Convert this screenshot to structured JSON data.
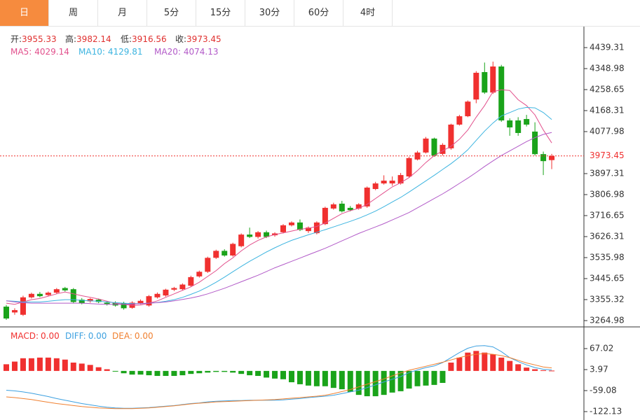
{
  "tabs": [
    "日",
    "周",
    "月",
    "5分",
    "15分",
    "30分",
    "60分",
    "4时"
  ],
  "chart_data": [
    {
      "type": "candlestick",
      "ohlc_labels": [
        "开:",
        "高:",
        "低:",
        "收:"
      ],
      "up_color": "#f0302f",
      "down_color": "#1aa31a",
      "candles": [
        [
          3325,
          3332,
          3268,
          3274
        ],
        [
          3300,
          3318,
          3290,
          3310
        ],
        [
          3290,
          3372,
          3285,
          3365
        ],
        [
          3365,
          3385,
          3360,
          3380
        ],
        [
          3380,
          3388,
          3365,
          3370
        ],
        [
          3375,
          3390,
          3370,
          3385
        ],
        [
          3385,
          3405,
          3380,
          3400
        ],
        [
          3405,
          3410,
          3390,
          3395
        ],
        [
          3400,
          3405,
          3340,
          3345
        ],
        [
          3355,
          3362,
          3335,
          3340
        ],
        [
          3348,
          3362,
          3342,
          3358
        ],
        [
          3355,
          3360,
          3340,
          3345
        ],
        [
          3342,
          3350,
          3330,
          3336
        ],
        [
          3342,
          3348,
          3325,
          3330
        ],
        [
          3340,
          3346,
          3312,
          3318
        ],
        [
          3320,
          3348,
          3316,
          3342
        ],
        [
          3340,
          3356,
          3335,
          3350
        ],
        [
          3330,
          3375,
          3325,
          3370
        ],
        [
          3365,
          3386,
          3360,
          3380
        ],
        [
          3373,
          3402,
          3368,
          3398
        ],
        [
          3398,
          3410,
          3392,
          3405
        ],
        [
          3400,
          3425,
          3396,
          3420
        ],
        [
          3415,
          3458,
          3410,
          3452
        ],
        [
          3455,
          3480,
          3450,
          3475
        ],
        [
          3475,
          3540,
          3470,
          3535
        ],
        [
          3535,
          3570,
          3530,
          3565
        ],
        [
          3565,
          3572,
          3540,
          3545
        ],
        [
          3545,
          3600,
          3540,
          3595
        ],
        [
          3585,
          3640,
          3580,
          3635
        ],
        [
          3635,
          3665,
          3620,
          3625
        ],
        [
          3625,
          3650,
          3618,
          3645
        ],
        [
          3645,
          3652,
          3620,
          3625
        ],
        [
          3632,
          3645,
          3626,
          3640
        ],
        [
          3645,
          3680,
          3640,
          3675
        ],
        [
          3675,
          3692,
          3670,
          3687
        ],
        [
          3687,
          3700,
          3650,
          3655
        ],
        [
          3650,
          3670,
          3642,
          3665
        ],
        [
          3641,
          3692,
          3636,
          3687
        ],
        [
          3680,
          3755,
          3676,
          3750
        ],
        [
          3747,
          3772,
          3742,
          3765
        ],
        [
          3768,
          3780,
          3730,
          3735
        ],
        [
          3750,
          3758,
          3735,
          3740
        ],
        [
          3747,
          3770,
          3742,
          3765
        ],
        [
          3756,
          3842,
          3750,
          3837
        ],
        [
          3831,
          3862,
          3826,
          3855
        ],
        [
          3855,
          3890,
          3850,
          3867
        ],
        [
          3855,
          3885,
          3845,
          3867
        ],
        [
          3855,
          3900,
          3850,
          3891
        ],
        [
          3885,
          3970,
          3880,
          3964
        ],
        [
          3958,
          3995,
          3954,
          3988
        ],
        [
          3988,
          4055,
          3984,
          4048
        ],
        [
          4048,
          4052,
          3970,
          3975
        ],
        [
          3982,
          4028,
          3975,
          4021
        ],
        [
          4006,
          4112,
          4000,
          4108
        ],
        [
          4108,
          4150,
          4104,
          4144
        ],
        [
          4144,
          4212,
          4140,
          4207
        ],
        [
          4216,
          4338,
          4200,
          4331
        ],
        [
          4334,
          4375,
          4240,
          4246
        ],
        [
          4246,
          4379,
          4240,
          4358
        ],
        [
          4358,
          4365,
          4120,
          4126
        ],
        [
          4126,
          4135,
          4060,
          4096
        ],
        [
          4126,
          4140,
          4060,
          4072
        ],
        [
          4132,
          4150,
          4100,
          4108
        ],
        [
          4078,
          4118,
          3975,
          3981
        ],
        [
          3981,
          3992,
          3891,
          3951
        ],
        [
          3955.33,
          3982.14,
          3916.56,
          3973.45
        ]
      ],
      "series": [
        {
          "name": "MA5:",
          "color": "#e2508c",
          "values": [
            3340,
            3335,
            3345,
            3355,
            3360,
            3370,
            3380,
            3388,
            3380,
            3372,
            3365,
            3358,
            3348,
            3340,
            3335,
            3330,
            3332,
            3340,
            3350,
            3365,
            3380,
            3395,
            3410,
            3430,
            3455,
            3480,
            3510,
            3535,
            3565,
            3590,
            3610,
            3625,
            3635,
            3642,
            3650,
            3658,
            3662,
            3670,
            3685,
            3705,
            3725,
            3738,
            3748,
            3765,
            3790,
            3815,
            3840,
            3858,
            3880,
            3910,
            3945,
            3975,
            3995,
            4015,
            4045,
            4085,
            4140,
            4190,
            4250,
            4258,
            4255,
            4215,
            4190,
            4150,
            4085,
            4029.14
          ]
        },
        {
          "name": "MA10:",
          "color": "#3cb4e0",
          "values": [
            3350,
            3348,
            3345,
            3345,
            3345,
            3348,
            3352,
            3355,
            3355,
            3352,
            3350,
            3348,
            3345,
            3342,
            3340,
            3338,
            3338,
            3340,
            3343,
            3348,
            3355,
            3365,
            3378,
            3392,
            3410,
            3430,
            3452,
            3475,
            3498,
            3520,
            3540,
            3560,
            3578,
            3595,
            3610,
            3622,
            3634,
            3645,
            3656,
            3668,
            3680,
            3692,
            3705,
            3720,
            3736,
            3755,
            3775,
            3795,
            3818,
            3842,
            3866,
            3890,
            3915,
            3940,
            3968,
            4000,
            4040,
            4080,
            4115,
            4145,
            4160,
            4175,
            4182,
            4180,
            4160,
            4129.81
          ]
        },
        {
          "name": "MA20:",
          "color": "#b25ac8",
          "values": [
            3350,
            3345,
            3342,
            3340,
            3340,
            3340,
            3340,
            3340,
            3340,
            3340,
            3338,
            3336,
            3335,
            3335,
            3335,
            3336,
            3338,
            3340,
            3342,
            3345,
            3350,
            3356,
            3362,
            3370,
            3380,
            3392,
            3404,
            3418,
            3432,
            3446,
            3460,
            3476,
            3492,
            3506,
            3520,
            3534,
            3548,
            3562,
            3576,
            3592,
            3608,
            3624,
            3640,
            3654,
            3668,
            3682,
            3698,
            3714,
            3730,
            3750,
            3770,
            3790,
            3810,
            3832,
            3855,
            3878,
            3902,
            3928,
            3952,
            3975,
            3995,
            4015,
            4035,
            4052,
            4066,
            4074.13
          ]
        }
      ],
      "ylim": [
        3243.9,
        4523.6
      ],
      "yticks": [
        4439.31,
        4348.98,
        4258.65,
        4168.31,
        4077.98,
        3897.31,
        3806.98,
        3716.65,
        3626.31,
        3535.98,
        3445.65,
        3355.32,
        3264.98
      ]
    },
    {
      "type": "macd",
      "legend": [
        {
          "name": "MACD:",
          "value": 0,
          "label": "0.00",
          "color": "#f0302f"
        },
        {
          "name": "DIFF:",
          "value": 0,
          "label": "0.00",
          "color": "#3ca0e0"
        },
        {
          "name": "DEA:",
          "value": 0,
          "label": "0.00",
          "color": "#f08030"
        }
      ],
      "histogram": [
        20,
        28,
        38,
        38,
        40,
        40,
        38,
        34,
        25,
        22,
        18,
        11,
        5,
        -2,
        -7,
        -11,
        -11,
        -13,
        -15,
        -15,
        -15,
        -13,
        -9,
        -7,
        -5,
        -3,
        -3,
        -5,
        -9,
        -13,
        -15,
        -20,
        -23,
        -25,
        -34,
        -40,
        -44,
        -46,
        -46,
        -51,
        -55,
        -63,
        -72,
        -76,
        -76,
        -72,
        -65,
        -61,
        -53,
        -46,
        -44,
        -42,
        -36,
        25,
        40,
        55,
        60,
        55,
        50,
        40,
        30,
        20,
        10,
        5,
        2,
        1
      ],
      "series": [
        {
          "name": "DIFF",
          "color": "#3ca0e0",
          "values": [
            -58,
            -60,
            -63,
            -67,
            -72,
            -77,
            -83,
            -88,
            -93,
            -98,
            -102,
            -106,
            -109,
            -111,
            -112,
            -112,
            -111,
            -110,
            -108,
            -106,
            -104,
            -101,
            -98,
            -96,
            -93,
            -91,
            -90,
            -89,
            -89,
            -88,
            -88,
            -88,
            -88,
            -87,
            -85,
            -83,
            -80,
            -78,
            -76,
            -73,
            -68,
            -63,
            -58,
            -50,
            -42,
            -33,
            -25,
            -17,
            -5,
            3,
            10,
            15,
            25,
            40,
            55,
            68,
            75,
            76,
            72,
            58,
            40,
            28,
            18,
            10,
            5,
            3
          ]
        },
        {
          "name": "DEA",
          "color": "#f08030",
          "values": [
            -78,
            -80,
            -83,
            -86,
            -90,
            -94,
            -98,
            -101,
            -104,
            -107,
            -109,
            -111,
            -112,
            -113,
            -113,
            -113,
            -112,
            -111,
            -109,
            -107,
            -105,
            -102,
            -99,
            -97,
            -95,
            -93,
            -92,
            -91,
            -90,
            -89,
            -88,
            -87,
            -86,
            -84,
            -82,
            -80,
            -78,
            -76,
            -73,
            -68,
            -62,
            -56,
            -48,
            -40,
            -32,
            -24,
            -15,
            -6,
            2,
            8,
            14,
            20,
            26,
            33,
            40,
            46,
            50,
            52,
            50,
            46,
            40,
            32,
            24,
            18,
            12,
            9
          ]
        }
      ],
      "ylim": [
        -143.15,
        130.07
      ],
      "yticks": [
        67.02,
        3.97,
        -59.08,
        -122.13
      ]
    }
  ]
}
